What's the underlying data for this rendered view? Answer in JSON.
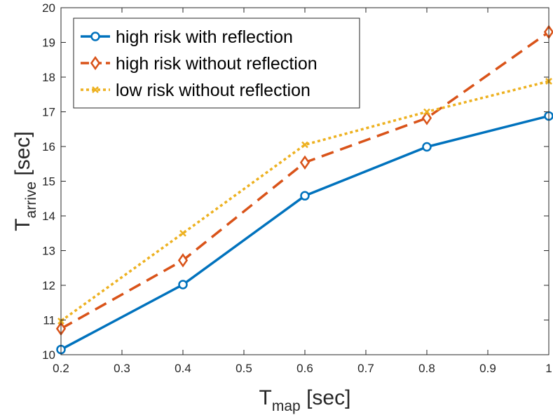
{
  "chart_data": {
    "type": "line",
    "title": "",
    "xlabel": {
      "main": "T",
      "sub": "map",
      "unit": " [sec]"
    },
    "ylabel": {
      "main": "T",
      "sub": "arrive",
      "unit": " [sec]"
    },
    "x": [
      0.2,
      0.4,
      0.6,
      0.8,
      1.0
    ],
    "xlim": [
      0.2,
      1.0
    ],
    "ylim": [
      10,
      20
    ],
    "xticks": [
      "0.2",
      "0.3",
      "0.4",
      "0.5",
      "0.6",
      "0.7",
      "0.8",
      "0.9",
      "1"
    ],
    "yticks": [
      "10",
      "11",
      "12",
      "13",
      "14",
      "15",
      "16",
      "17",
      "18",
      "19",
      "20"
    ],
    "grid": false,
    "legend_position": "top-left",
    "series": [
      {
        "name": "high risk with reflection",
        "values": [
          10.15,
          12.02,
          14.58,
          15.99,
          16.88
        ],
        "color": "#0072BD",
        "style": "solid",
        "marker": "circle"
      },
      {
        "name": "high risk without reflection",
        "values": [
          10.75,
          12.72,
          15.54,
          16.82,
          19.3
        ],
        "color": "#D95319",
        "style": "dashed",
        "marker": "diamond"
      },
      {
        "name": "low risk without reflection",
        "values": [
          10.97,
          13.5,
          16.05,
          17.0,
          17.88
        ],
        "color": "#EDB120",
        "style": "dotted",
        "marker": "x"
      }
    ]
  }
}
